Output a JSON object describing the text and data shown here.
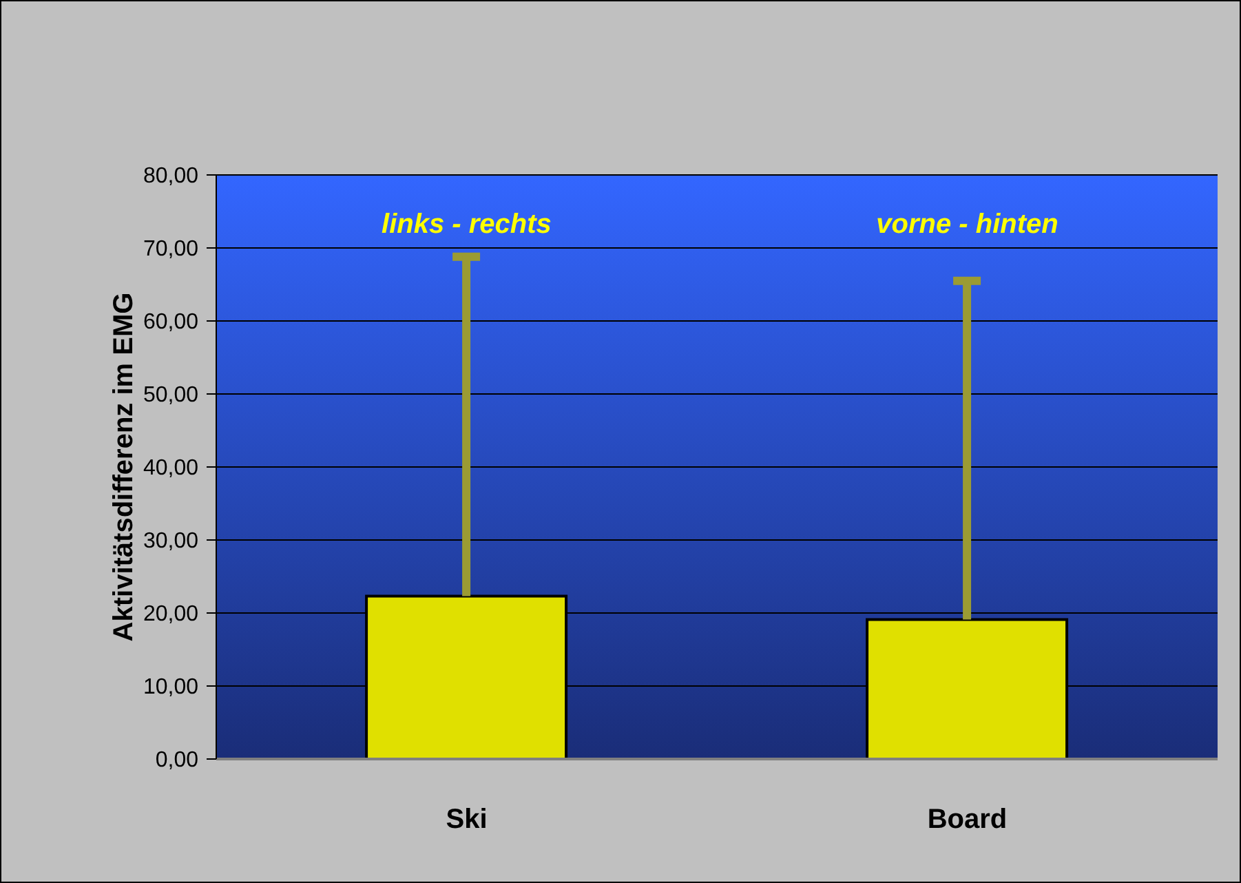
{
  "chart_data": {
    "type": "bar",
    "categories": [
      "Ski",
      "Board"
    ],
    "values": [
      22.3,
      19.1
    ],
    "errors": [
      [
        22.3,
        68.8
      ],
      [
        19.1,
        65.5
      ]
    ],
    "color": "#e0e000",
    "ylabel": "Aktivitätsdifferenz im EMG",
    "ylim": [
      0,
      80
    ],
    "yticks": [
      {
        "value": 0,
        "label": "0,00"
      },
      {
        "value": 10,
        "label": "10,00"
      },
      {
        "value": 20,
        "label": "20,00"
      },
      {
        "value": 30,
        "label": "30,00"
      },
      {
        "value": 40,
        "label": "40,00"
      },
      {
        "value": 50,
        "label": "50,00"
      },
      {
        "value": 60,
        "label": "60,00"
      },
      {
        "value": 70,
        "label": "70,00"
      },
      {
        "value": 80,
        "label": "80,00"
      }
    ],
    "grid": "y",
    "annotations": [
      "links - rechts",
      "vorne - hinten"
    ]
  }
}
